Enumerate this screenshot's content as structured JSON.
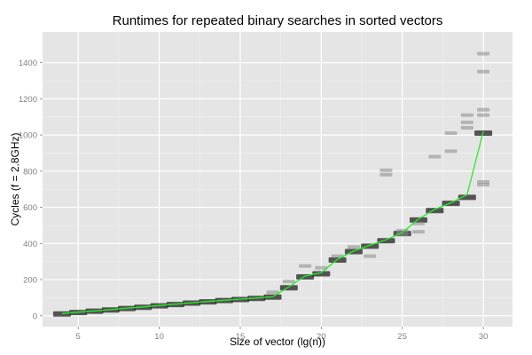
{
  "chart_data": {
    "type": "scatter",
    "title": "Runtimes for repeated binary searches in sorted vectors",
    "xlabel": "Size of vector (lg(n))",
    "ylabel": "Cycles (f = 2.8GHz)",
    "xlim": [
      2.8,
      31.8
    ],
    "ylim": [
      -60,
      1570
    ],
    "x_ticks": [
      5,
      10,
      15,
      20,
      25,
      30
    ],
    "y_ticks": [
      0,
      200,
      400,
      600,
      800,
      1000,
      1200,
      1400
    ],
    "grid": true,
    "legend": "none",
    "colors": {
      "panel": "#e5e5e5",
      "grid_major": "#ffffff",
      "grid_minor": "#f2f2f2",
      "points": "#222222",
      "outliers": "#8a8a8a",
      "line": "#22ee22"
    },
    "series": [
      {
        "style": "boxes",
        "x": [
          4,
          5,
          6,
          7,
          8,
          9,
          10,
          11,
          12,
          13,
          14,
          15,
          16,
          17,
          18,
          19,
          20,
          21,
          22,
          23,
          24,
          25,
          26,
          27,
          28,
          29,
          30
        ],
        "values": [
          10,
          18,
          25,
          32,
          40,
          47,
          55,
          62,
          70,
          77,
          84,
          90,
          96,
          103,
          155,
          215,
          232,
          308,
          355,
          385,
          415,
          455,
          530,
          582,
          622,
          655,
          1010
        ]
      },
      {
        "name": "median",
        "style": "line",
        "x": [
          4,
          5,
          6,
          7,
          8,
          9,
          10,
          11,
          12,
          13,
          14,
          15,
          16,
          17,
          18,
          19,
          20,
          21,
          22,
          23,
          24,
          25,
          26,
          27,
          28,
          29,
          30
        ],
        "values": [
          12,
          20,
          27,
          34,
          42,
          49,
          57,
          64,
          72,
          79,
          86,
          92,
          98,
          105,
          160,
          220,
          238,
          312,
          358,
          390,
          420,
          460,
          535,
          588,
          625,
          670,
          1020
        ]
      },
      {
        "style": "outliers",
        "x": [
          17,
          18,
          19,
          20,
          21,
          22,
          23,
          24,
          24,
          25,
          25,
          26,
          26,
          27,
          28,
          28,
          29,
          29,
          29,
          30,
          30,
          30,
          30,
          30,
          30
        ],
        "values": [
          130,
          190,
          275,
          265,
          330,
          380,
          330,
          780,
          805,
          450,
          470,
          510,
          465,
          880,
          1010,
          910,
          1110,
          1040,
          1070,
          1450,
          1350,
          1110,
          1140,
          740,
          725
        ]
      }
    ]
  }
}
